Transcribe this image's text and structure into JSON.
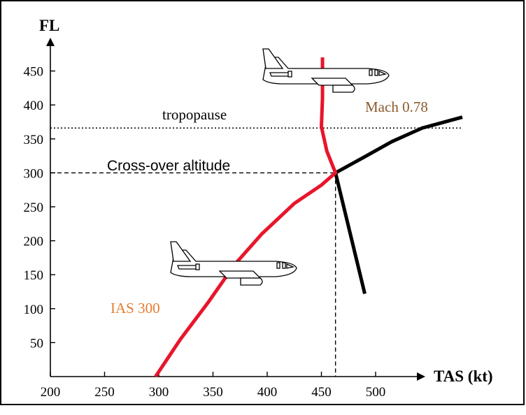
{
  "chart_data": {
    "type": "line",
    "xlabel": "TAS (kt)",
    "ylabel": "FL",
    "xlim": [
      200,
      510
    ],
    "ylim": [
      0,
      480
    ],
    "x_ticks": [
      200,
      250,
      300,
      350,
      400,
      450,
      500
    ],
    "y_ticks": [
      50,
      100,
      150,
      200,
      250,
      300,
      350,
      400,
      450
    ],
    "series": [
      {
        "name": "IAS 300",
        "color": "#e8152b",
        "points": [
          [
            297,
            0
          ],
          [
            320,
            55
          ],
          [
            345,
            108
          ],
          [
            370,
            165
          ],
          [
            395,
            210
          ],
          [
            425,
            255
          ],
          [
            450,
            282
          ],
          [
            463,
            300
          ],
          [
            455,
            332
          ],
          [
            450,
            368
          ],
          [
            451,
            410
          ],
          [
            451,
            470
          ]
        ]
      },
      {
        "name": "Mach 0.78",
        "color": "#000000",
        "points": [
          [
            463,
            300
          ],
          [
            488,
            322
          ],
          [
            515,
            346
          ],
          [
            543,
            366
          ],
          [
            580,
            382
          ],
          [
            490,
            122
          ]
        ]
      }
    ],
    "reference_lines": [
      {
        "label": "tropopause",
        "y": 366,
        "style": "dotted"
      },
      {
        "label": "Cross-over altitude",
        "y": 300,
        "x": 463,
        "style": "dashed"
      }
    ],
    "label_colors": {
      "ias": "#e67c2e",
      "mach": "#8a5a2b"
    },
    "icons": [
      "airplane-icon",
      "airplane-icon"
    ]
  }
}
